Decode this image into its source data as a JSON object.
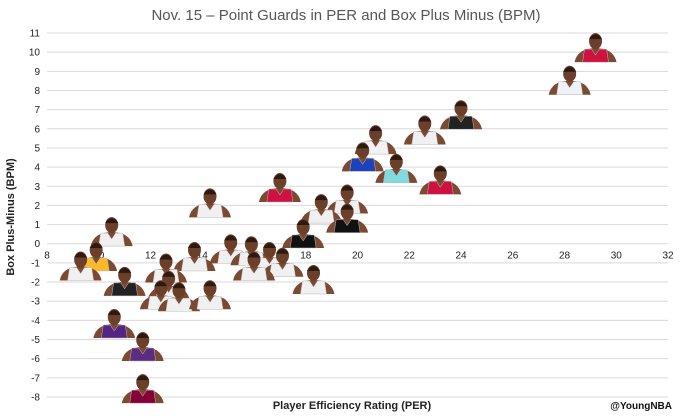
{
  "chart_data": {
    "type": "scatter",
    "title": "Nov. 15 – Point Guards in PER and Box Plus Minus (BPM)",
    "xlabel": "Player Efficiency Rating (PER)",
    "ylabel": "Box Plus-Minus (BPM)",
    "xlim": [
      8,
      32
    ],
    "ylim": [
      -8,
      11
    ],
    "x_ticks": [
      "8",
      "10",
      "12",
      "14",
      "16",
      "18",
      "20",
      "22",
      "24",
      "26",
      "28",
      "30",
      "32"
    ],
    "y_ticks": [
      "11",
      "10",
      "9",
      "8",
      "7",
      "6",
      "5",
      "4",
      "3",
      "2",
      "1",
      "0",
      "-1",
      "-2",
      "-3",
      "-4",
      "-5",
      "-6",
      "-7",
      "-8"
    ],
    "grid": "horizontal",
    "credit": "@YoungNBA",
    "points": [
      {
        "x": 29.2,
        "y": 10.0,
        "jersey": "#CE1141"
      },
      {
        "x": 28.2,
        "y": 8.3,
        "jersey": "#F0F0F8"
      },
      {
        "x": 24.0,
        "y": 6.5,
        "jersey": "#222222"
      },
      {
        "x": 22.6,
        "y": 5.7,
        "jersey": "#F0F0F0"
      },
      {
        "x": 20.7,
        "y": 5.2,
        "jersey": "#F2F2F2"
      },
      {
        "x": 20.2,
        "y": 4.3,
        "jersey": "#1D42BA"
      },
      {
        "x": 21.5,
        "y": 3.7,
        "jersey": "#7FDBE0"
      },
      {
        "x": 23.2,
        "y": 3.1,
        "jersey": "#CE1141"
      },
      {
        "x": 17.0,
        "y": 2.7,
        "jersey": "#CE1141"
      },
      {
        "x": 14.3,
        "y": 1.9,
        "jersey": "#F0F0F0"
      },
      {
        "x": 19.6,
        "y": 2.1,
        "jersey": "#F0F0F0"
      },
      {
        "x": 18.6,
        "y": 1.6,
        "jersey": "#F0F0F0"
      },
      {
        "x": 19.6,
        "y": 1.1,
        "jersey": "#111111"
      },
      {
        "x": 10.5,
        "y": 0.4,
        "jersey": "#F0F0F0"
      },
      {
        "x": 17.9,
        "y": 0.3,
        "jersey": "#111111"
      },
      {
        "x": 9.9,
        "y": -0.9,
        "jersey": "#FDB927"
      },
      {
        "x": 9.3,
        "y": -1.4,
        "jersey": "#F0F0F0"
      },
      {
        "x": 15.1,
        "y": -0.5,
        "jersey": "#F0F0F0"
      },
      {
        "x": 13.7,
        "y": -0.9,
        "jersey": "#F0F0F0"
      },
      {
        "x": 15.9,
        "y": -0.6,
        "jersey": "#F0F0F0"
      },
      {
        "x": 16.6,
        "y": -0.9,
        "jersey": "#F0F0F0"
      },
      {
        "x": 17.1,
        "y": -1.2,
        "jersey": "#F0F0F0"
      },
      {
        "x": 12.6,
        "y": -1.5,
        "jersey": "#F0F0F0"
      },
      {
        "x": 16.0,
        "y": -1.4,
        "jersey": "#F0F0F0"
      },
      {
        "x": 18.3,
        "y": -2.1,
        "jersey": "#F0F0F0"
      },
      {
        "x": 11.0,
        "y": -2.2,
        "jersey": "#222222"
      },
      {
        "x": 12.7,
        "y": -2.4,
        "jersey": "#F0F0F0"
      },
      {
        "x": 12.4,
        "y": -2.9,
        "jersey": "#F0F0F0"
      },
      {
        "x": 13.1,
        "y": -3.0,
        "jersey": "#F0F0F0"
      },
      {
        "x": 14.3,
        "y": -2.9,
        "jersey": "#F0F0F0"
      },
      {
        "x": 10.6,
        "y": -4.4,
        "jersey": "#552583"
      },
      {
        "x": 11.7,
        "y": -5.6,
        "jersey": "#5A2D81"
      },
      {
        "x": 11.7,
        "y": -7.8,
        "jersey": "#860038"
      }
    ]
  }
}
